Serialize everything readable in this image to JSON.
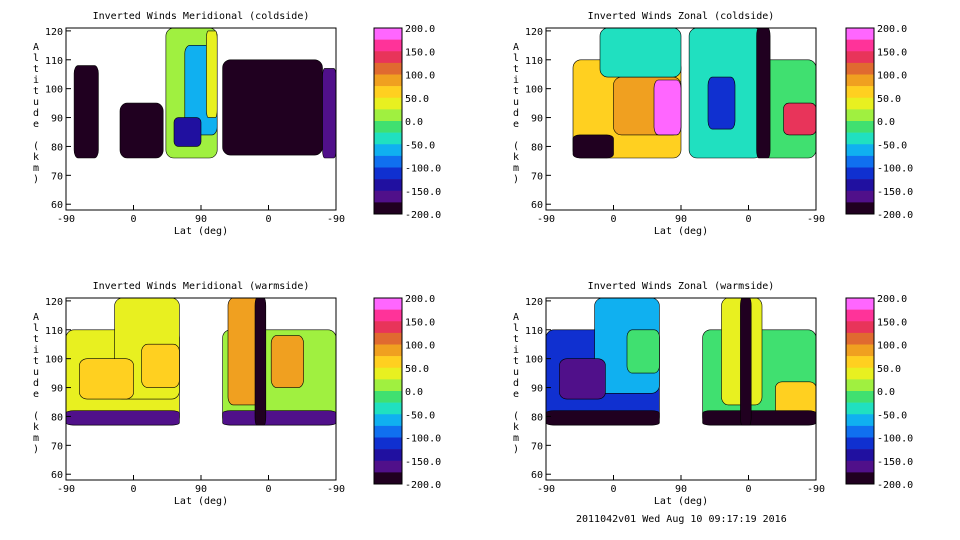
{
  "footer": "2011042v01 Wed Aug 10 09:17:19 2016",
  "colorbar": {
    "ticks": [
      "200.0",
      "150.0",
      "100.0",
      "50.0",
      "0.0",
      "-50.0",
      "-100.0",
      "-150.0",
      "-200.0"
    ],
    "colors": [
      "#ff66ff",
      "#ff3399",
      "#e8345a",
      "#e06a30",
      "#f0a020",
      "#ffd020",
      "#e8f020",
      "#a0f040",
      "#40e070",
      "#20e0c0",
      "#10b0f0",
      "#1070f0",
      "#1030d0",
      "#2010a0",
      "#50108a",
      "#200020"
    ]
  },
  "chart_data": [
    {
      "type": "heatmap",
      "title": "Inverted Winds Meridional (coldside)",
      "xlabel": "Lat (deg)",
      "ylabel": "Altitude (km)",
      "xticks": [
        "-90",
        "0",
        "90",
        "0",
        "-90"
      ],
      "yticks": [
        "60",
        "70",
        "80",
        "90",
        "100",
        "110",
        "120"
      ],
      "ylim": [
        58,
        121
      ],
      "zlim": [
        -200,
        200
      ],
      "blobs": [
        {
          "x": [
            0.37,
            0.56
          ],
          "y": [
            76,
            121
          ],
          "v": 5
        },
        {
          "x": [
            0.44,
            0.56
          ],
          "y": [
            84,
            115
          ],
          "v": -60
        },
        {
          "x": [
            0.52,
            0.56
          ],
          "y": [
            90,
            120
          ],
          "v": 40
        },
        {
          "x": [
            0.4,
            0.5
          ],
          "y": [
            80,
            90
          ],
          "v": -140
        },
        {
          "x": [
            0.2,
            0.36
          ],
          "y": [
            76,
            95
          ],
          "v": -175
        },
        {
          "x": [
            0.03,
            0.12
          ],
          "y": [
            76,
            108
          ],
          "v": -180
        },
        {
          "x": [
            0.58,
            0.95
          ],
          "y": [
            77,
            110
          ],
          "v": -185
        },
        {
          "x": [
            0.95,
            1.0
          ],
          "y": [
            76,
            107
          ],
          "v": -150
        }
      ]
    },
    {
      "type": "heatmap",
      "title": "Inverted Winds Zonal (coldside)",
      "xlabel": "Lat (deg)",
      "ylabel": "Altitude (km)",
      "xticks": [
        "-90",
        "0",
        "90",
        "0",
        "-90"
      ],
      "yticks": [
        "60",
        "70",
        "80",
        "90",
        "100",
        "110",
        "120"
      ],
      "ylim": [
        58,
        121
      ],
      "zlim": [
        -200,
        200
      ],
      "blobs": [
        {
          "x": [
            0.1,
            0.5
          ],
          "y": [
            76,
            110
          ],
          "v": 60
        },
        {
          "x": [
            0.25,
            0.5
          ],
          "y": [
            84,
            104
          ],
          "v": 80
        },
        {
          "x": [
            0.4,
            0.5
          ],
          "y": [
            84,
            103
          ],
          "v": 190
        },
        {
          "x": [
            0.1,
            0.25
          ],
          "y": [
            76,
            84
          ],
          "v": -175
        },
        {
          "x": [
            0.2,
            0.5
          ],
          "y": [
            104,
            121
          ],
          "v": -40
        },
        {
          "x": [
            0.53,
            0.8
          ],
          "y": [
            76,
            121
          ],
          "v": -30
        },
        {
          "x": [
            0.6,
            0.7
          ],
          "y": [
            86,
            104
          ],
          "v": -110
        },
        {
          "x": [
            0.8,
            1.0
          ],
          "y": [
            76,
            110
          ],
          "v": -20
        },
        {
          "x": [
            0.88,
            1.0
          ],
          "y": [
            84,
            95
          ],
          "v": 140
        },
        {
          "x": [
            0.78,
            0.83
          ],
          "y": [
            76,
            121
          ],
          "v": -195
        }
      ]
    },
    {
      "type": "heatmap",
      "title": "Inverted Winds Meridional (warmside)",
      "xlabel": "Lat (deg)",
      "ylabel": "Altitude (km)",
      "xticks": [
        "-90",
        "0",
        "90",
        "0",
        "-90"
      ],
      "yticks": [
        "60",
        "70",
        "80",
        "90",
        "100",
        "110",
        "120"
      ],
      "ylim": [
        58,
        121
      ],
      "zlim": [
        -200,
        200
      ],
      "blobs": [
        {
          "x": [
            0.0,
            0.42
          ],
          "y": [
            77,
            110
          ],
          "v": 30
        },
        {
          "x": [
            0.18,
            0.42
          ],
          "y": [
            86,
            121
          ],
          "v": 40
        },
        {
          "x": [
            0.05,
            0.25
          ],
          "y": [
            86,
            100
          ],
          "v": 60
        },
        {
          "x": [
            0.28,
            0.42
          ],
          "y": [
            90,
            105
          ],
          "v": 75
        },
        {
          "x": [
            0.0,
            0.42
          ],
          "y": [
            77,
            82
          ],
          "v": -170
        },
        {
          "x": [
            0.58,
            1.0
          ],
          "y": [
            77,
            110
          ],
          "v": 10
        },
        {
          "x": [
            0.6,
            0.72
          ],
          "y": [
            84,
            121
          ],
          "v": 80
        },
        {
          "x": [
            0.76,
            0.88
          ],
          "y": [
            90,
            108
          ],
          "v": 100
        },
        {
          "x": [
            0.58,
            1.0
          ],
          "y": [
            77,
            82
          ],
          "v": -170
        },
        {
          "x": [
            0.7,
            0.74
          ],
          "y": [
            77,
            121
          ],
          "v": -190
        }
      ]
    },
    {
      "type": "heatmap",
      "title": "Inverted Winds Zonal (warmside)",
      "xlabel": "Lat (deg)",
      "ylabel": "Altitude (km)",
      "xticks": [
        "-90",
        "0",
        "90",
        "0",
        "-90"
      ],
      "yticks": [
        "60",
        "70",
        "80",
        "90",
        "100",
        "110",
        "120"
      ],
      "ylim": [
        58,
        121
      ],
      "zlim": [
        -200,
        200
      ],
      "blobs": [
        {
          "x": [
            0.0,
            0.42
          ],
          "y": [
            77,
            110
          ],
          "v": -100
        },
        {
          "x": [
            0.18,
            0.42
          ],
          "y": [
            88,
            121
          ],
          "v": -60
        },
        {
          "x": [
            0.05,
            0.22
          ],
          "y": [
            86,
            100
          ],
          "v": -150
        },
        {
          "x": [
            0.3,
            0.42
          ],
          "y": [
            95,
            110
          ],
          "v": -20
        },
        {
          "x": [
            0.0,
            0.42
          ],
          "y": [
            77,
            82
          ],
          "v": -185
        },
        {
          "x": [
            0.58,
            1.0
          ],
          "y": [
            77,
            110
          ],
          "v": -20
        },
        {
          "x": [
            0.65,
            0.8
          ],
          "y": [
            84,
            121
          ],
          "v": 40
        },
        {
          "x": [
            0.85,
            1.0
          ],
          "y": [
            80,
            92
          ],
          "v": 60
        },
        {
          "x": [
            0.58,
            1.0
          ],
          "y": [
            77,
            82
          ],
          "v": -175
        },
        {
          "x": [
            0.72,
            0.76
          ],
          "y": [
            77,
            121
          ],
          "v": -195
        }
      ]
    }
  ]
}
